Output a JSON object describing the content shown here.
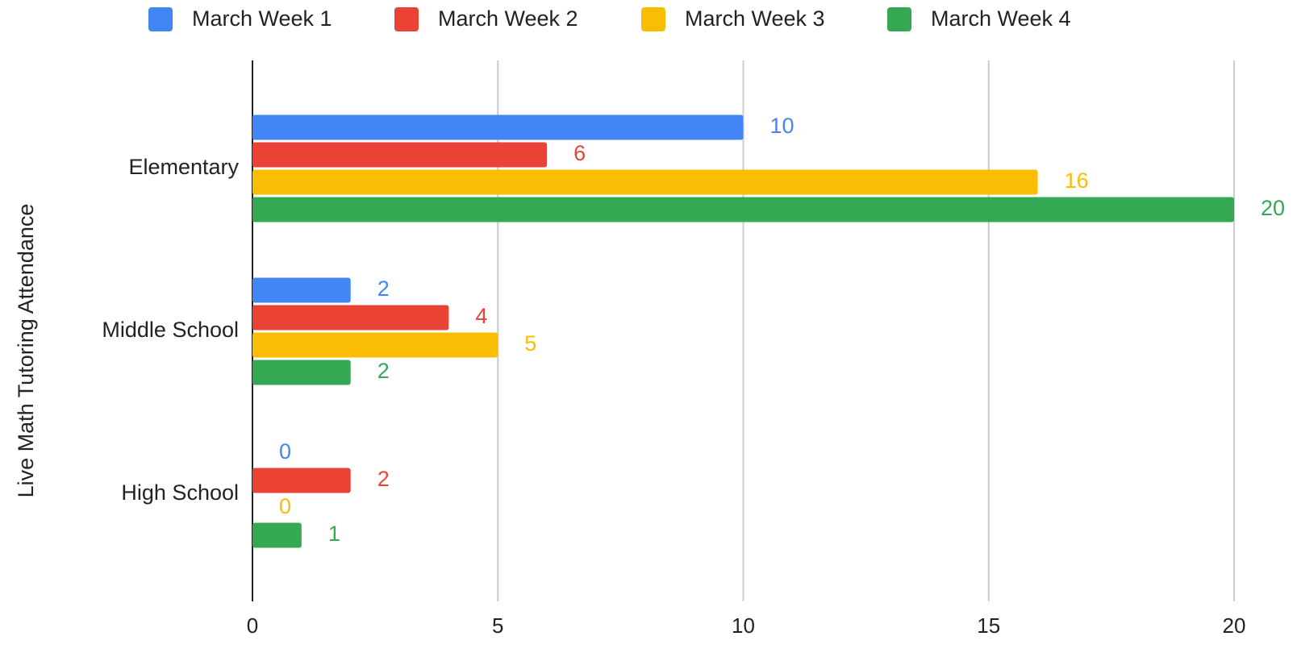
{
  "chart_data": {
    "type": "bar",
    "orientation": "horizontal",
    "y_label": "Live Math Tutoring Attendance",
    "categories": [
      "Elementary",
      "Middle School",
      "High School"
    ],
    "series": [
      {
        "name": "March Week 1",
        "color": "#4285f4",
        "values": [
          10,
          2,
          0
        ]
      },
      {
        "name": "March Week 2",
        "color": "#ea4335",
        "values": [
          6,
          4,
          2
        ]
      },
      {
        "name": "March Week 3",
        "color": "#fbbc04",
        "values": [
          16,
          5,
          0
        ]
      },
      {
        "name": "March Week 4",
        "color": "#34a853",
        "values": [
          20,
          2,
          1
        ]
      }
    ],
    "xlim": [
      0,
      20
    ],
    "xticks": [
      0,
      5,
      10,
      15,
      20
    ],
    "grid": true,
    "legend": "top"
  }
}
